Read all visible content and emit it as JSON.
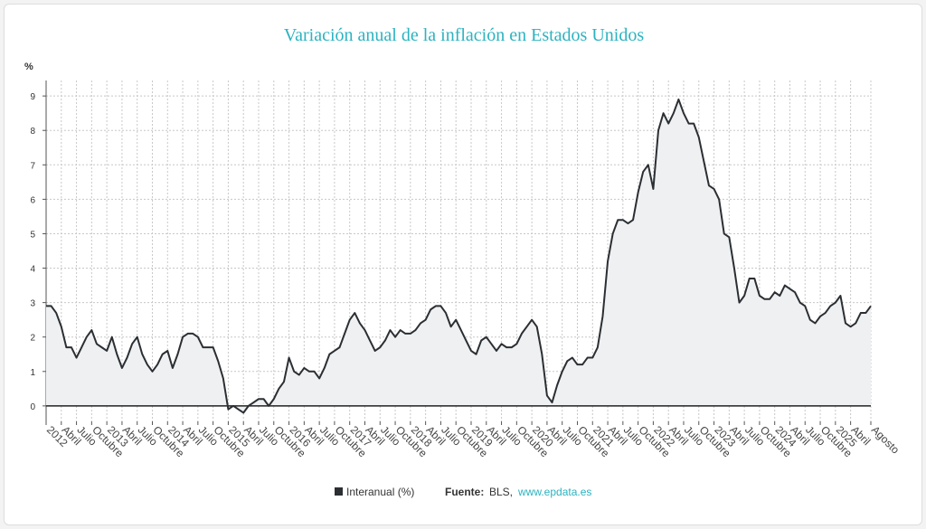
{
  "chart_data": {
    "type": "line",
    "title": "Variación anual de la inflación en Estados Unidos",
    "y_label": "%",
    "categories": [
      "2012",
      null,
      null,
      "Abril",
      null,
      null,
      "Julio",
      null,
      null,
      "Octubre",
      null,
      null,
      "2013",
      null,
      null,
      "Abril",
      null,
      null,
      "Julio",
      null,
      null,
      "Octubre",
      null,
      null,
      "2014",
      null,
      null,
      "Abril",
      null,
      null,
      "Julio",
      null,
      null,
      "Octubre",
      null,
      null,
      "2015",
      null,
      null,
      "Abril",
      null,
      null,
      "Julio",
      null,
      null,
      "Octubre",
      null,
      null,
      "2016",
      null,
      null,
      "Abril",
      null,
      null,
      "Julio",
      null,
      null,
      "Octubre",
      null,
      null,
      "2017",
      null,
      null,
      "Abril",
      null,
      null,
      "Julio",
      null,
      null,
      "Octubre",
      null,
      null,
      "2018",
      null,
      null,
      "Abril",
      null,
      null,
      "Julio",
      null,
      null,
      "Octubre",
      null,
      null,
      "2019",
      null,
      null,
      "Abril",
      null,
      null,
      "Julio",
      null,
      null,
      "Octubre",
      null,
      null,
      "2020",
      null,
      null,
      "Abril",
      null,
      null,
      "Julio",
      null,
      null,
      "Octubre",
      null,
      null,
      "2021",
      null,
      null,
      "Abril",
      null,
      null,
      "Julio",
      null,
      null,
      "Octubre",
      null,
      null,
      "2022",
      null,
      null,
      "Abril",
      null,
      null,
      "Julio",
      null,
      null,
      "Octubre",
      null,
      null,
      "2023",
      null,
      null,
      "Abril",
      null,
      null,
      "Julio",
      null,
      null,
      "Octubre",
      null,
      null,
      "2024",
      null,
      null,
      "Abril",
      null,
      null,
      "Julio",
      null,
      null,
      "Octubre",
      null,
      null,
      "2025",
      null,
      null,
      "Abril",
      null,
      null,
      null,
      "Agosto"
    ],
    "series": [
      {
        "name": "Interanual (%)",
        "color": "#2b2f33",
        "fill": "#eef0f1",
        "values": [
          2.9,
          2.9,
          2.7,
          2.3,
          1.7,
          1.7,
          1.4,
          1.7,
          2.0,
          2.2,
          1.8,
          1.7,
          1.6,
          2.0,
          1.5,
          1.1,
          1.4,
          1.8,
          2.0,
          1.5,
          1.2,
          1.0,
          1.2,
          1.5,
          1.6,
          1.1,
          1.5,
          2.0,
          2.1,
          2.1,
          2.0,
          1.7,
          1.7,
          1.7,
          1.3,
          0.8,
          -0.1,
          0.0,
          -0.1,
          -0.2,
          0.0,
          0.1,
          0.2,
          0.2,
          0.0,
          0.2,
          0.5,
          0.7,
          1.4,
          1.0,
          0.9,
          1.1,
          1.0,
          1.0,
          0.8,
          1.1,
          1.5,
          1.6,
          1.7,
          2.1,
          2.5,
          2.7,
          2.4,
          2.2,
          1.9,
          1.6,
          1.7,
          1.9,
          2.2,
          2.0,
          2.2,
          2.1,
          2.1,
          2.2,
          2.4,
          2.5,
          2.8,
          2.9,
          2.9,
          2.7,
          2.3,
          2.5,
          2.2,
          1.9,
          1.6,
          1.5,
          1.9,
          2.0,
          1.8,
          1.6,
          1.8,
          1.7,
          1.7,
          1.8,
          2.1,
          2.3,
          2.5,
          2.3,
          1.5,
          0.3,
          0.1,
          0.6,
          1.0,
          1.3,
          1.4,
          1.2,
          1.2,
          1.4,
          1.4,
          1.7,
          2.6,
          4.2,
          5.0,
          5.4,
          5.4,
          5.3,
          5.4,
          6.2,
          6.8,
          7.0,
          6.3,
          8.0,
          8.5,
          8.2,
          8.5,
          8.9,
          8.5,
          8.2,
          8.2,
          7.8,
          7.1,
          6.4,
          6.3,
          6.0,
          5.0,
          4.9,
          4.0,
          3.0,
          3.2,
          3.7,
          3.7,
          3.2,
          3.1,
          3.1,
          3.3,
          3.2,
          3.5,
          3.4,
          3.3,
          3.0,
          2.9,
          2.5,
          2.4,
          2.6,
          2.7,
          2.9,
          3.0,
          3.2,
          2.4,
          2.3,
          2.4,
          2.7,
          2.7,
          2.9
        ]
      }
    ],
    "ylim": [
      -0.45,
      9.45
    ],
    "yticks": [
      0,
      1,
      2,
      3,
      4,
      5,
      6,
      7,
      8,
      9
    ],
    "grid": true,
    "legend": "bottom",
    "source": {
      "label": "Fuente:",
      "text": "BLS,",
      "link": "www.epdata.es"
    }
  }
}
